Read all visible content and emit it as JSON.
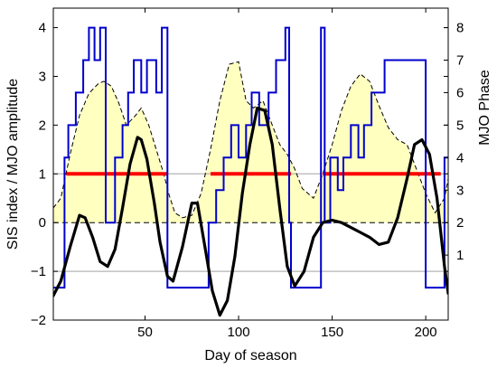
{
  "chart_data": {
    "type": "line",
    "xlabel": "Day of season",
    "ylabel": "SIS index / MJO amplitude",
    "y2label": "MJO Phase",
    "xlim": [
      1,
      212
    ],
    "ylim": [
      -2,
      4.4
    ],
    "y2lim": [
      -1,
      8.6
    ],
    "xticks": [
      50,
      100,
      150,
      200
    ],
    "yticks": [
      -2,
      -1,
      0,
      1,
      2,
      3,
      4
    ],
    "y2ticks": [
      1,
      2,
      3,
      4,
      5,
      6,
      7,
      8
    ],
    "xtick_labels": [
      "50",
      "100",
      "150",
      "200"
    ],
    "ytick_labels": [
      "−2",
      "−1",
      "0",
      "1",
      "2",
      "3",
      "4"
    ],
    "y2tick_labels": [
      "1",
      "2",
      "3",
      "4",
      "5",
      "6",
      "7",
      "8"
    ],
    "reference_lines": [
      1,
      0,
      -1
    ],
    "colors": {
      "sis_index": "#000000",
      "mjo_amplitude_fill": "#ffffc0",
      "mjo_amplitude_line": "#000000",
      "mjo_phase": "#0000cc",
      "active_threshold": "#ff0000",
      "grid_line": "#b4b4b4"
    },
    "series": [
      {
        "key": "mjo_amplitude",
        "style": "dashed line with filled area",
        "x": [
          1,
          5,
          10,
          15,
          20,
          25,
          28,
          32,
          36,
          40,
          45,
          48,
          52,
          56,
          60,
          63,
          66,
          70,
          75,
          80,
          85,
          90,
          95,
          100,
          104,
          108,
          113,
          118,
          122,
          126,
          130,
          134,
          140,
          145,
          150,
          155,
          160,
          165,
          170,
          175,
          180,
          185,
          190,
          195,
          200,
          205,
          210,
          212
        ],
        "y": [
          0.3,
          0.5,
          1.4,
          2.2,
          2.65,
          2.85,
          2.9,
          2.8,
          2.45,
          2.0,
          2.2,
          2.35,
          2.0,
          1.5,
          1.0,
          0.55,
          0.2,
          0.1,
          0.15,
          0.6,
          1.5,
          2.5,
          3.25,
          3.3,
          2.5,
          2.35,
          2.5,
          2.0,
          1.6,
          1.4,
          1.1,
          0.7,
          0.5,
          1.0,
          1.6,
          2.3,
          2.8,
          3.05,
          2.9,
          2.4,
          1.95,
          1.7,
          1.6,
          1.1,
          0.6,
          0.2,
          0.5,
          0.9
        ]
      },
      {
        "key": "sis_index",
        "style": "thick line",
        "x": [
          1,
          5,
          10,
          15,
          18,
          22,
          26,
          30,
          34,
          38,
          42,
          46,
          48,
          51,
          55,
          58,
          62,
          65,
          70,
          75,
          78,
          82,
          86,
          90,
          94,
          98,
          102,
          106,
          110,
          114,
          118,
          122,
          126,
          130,
          135,
          140,
          145,
          150,
          155,
          160,
          165,
          170,
          175,
          180,
          185,
          190,
          194,
          198,
          202,
          206,
          210,
          212
        ],
        "y": [
          -1.5,
          -1.2,
          -0.5,
          0.15,
          0.1,
          -0.3,
          -0.8,
          -0.9,
          -0.55,
          0.3,
          1.2,
          1.75,
          1.7,
          1.3,
          0.4,
          -0.4,
          -1.1,
          -1.2,
          -0.5,
          0.4,
          0.4,
          -0.5,
          -1.4,
          -1.9,
          -1.6,
          -0.7,
          0.6,
          1.6,
          2.35,
          2.3,
          1.6,
          0.3,
          -0.9,
          -1.3,
          -1.0,
          -0.3,
          0.0,
          0.05,
          0.0,
          -0.1,
          -0.2,
          -0.3,
          -0.45,
          -0.4,
          0.1,
          0.9,
          1.6,
          1.7,
          1.4,
          0.5,
          -0.9,
          -1.45
        ]
      },
      {
        "key": "mjo_phase",
        "axis": "right",
        "style": "step line",
        "x": [
          1,
          7,
          7,
          9,
          9,
          13,
          13,
          17,
          17,
          20,
          20,
          23,
          23,
          26,
          26,
          29,
          29,
          34,
          34,
          38,
          38,
          41,
          41,
          44,
          44,
          48,
          48,
          51,
          51,
          56,
          56,
          59,
          59,
          62,
          62,
          84,
          84,
          88,
          88,
          92,
          92,
          96,
          96,
          100,
          100,
          104,
          104,
          107,
          107,
          111,
          111,
          116,
          116,
          120,
          120,
          125,
          125,
          127,
          127,
          128,
          128,
          144,
          144,
          146,
          146,
          149,
          149,
          153,
          153,
          156,
          156,
          160,
          160,
          164,
          164,
          167,
          167,
          171,
          171,
          178,
          178,
          183,
          183,
          190,
          190,
          200,
          200,
          210,
          210,
          212
        ],
        "y": [
          0,
          0,
          4,
          4,
          5,
          5,
          6,
          6,
          7,
          7,
          8,
          8,
          7,
          7,
          8,
          8,
          2,
          2,
          4,
          4,
          5,
          5,
          6,
          6,
          7,
          7,
          6,
          6,
          7,
          7,
          6,
          6,
          8,
          8,
          0,
          0,
          2,
          2,
          3,
          3,
          4,
          4,
          5,
          5,
          4,
          4,
          5,
          5,
          6,
          6,
          5,
          5,
          6,
          6,
          7,
          7,
          8,
          8,
          2,
          2,
          0,
          0,
          8,
          8,
          2,
          2,
          4,
          4,
          3,
          3,
          4,
          4,
          5,
          5,
          4,
          4,
          5,
          5,
          6,
          6,
          7,
          7,
          7,
          7,
          7,
          7,
          0,
          0,
          4,
          4
        ]
      },
      {
        "key": "active_periods",
        "style": "thick red segments at y = 1",
        "segments": [
          [
            8,
            62
          ],
          [
            85,
            128
          ],
          [
            145,
            208
          ]
        ]
      }
    ]
  }
}
